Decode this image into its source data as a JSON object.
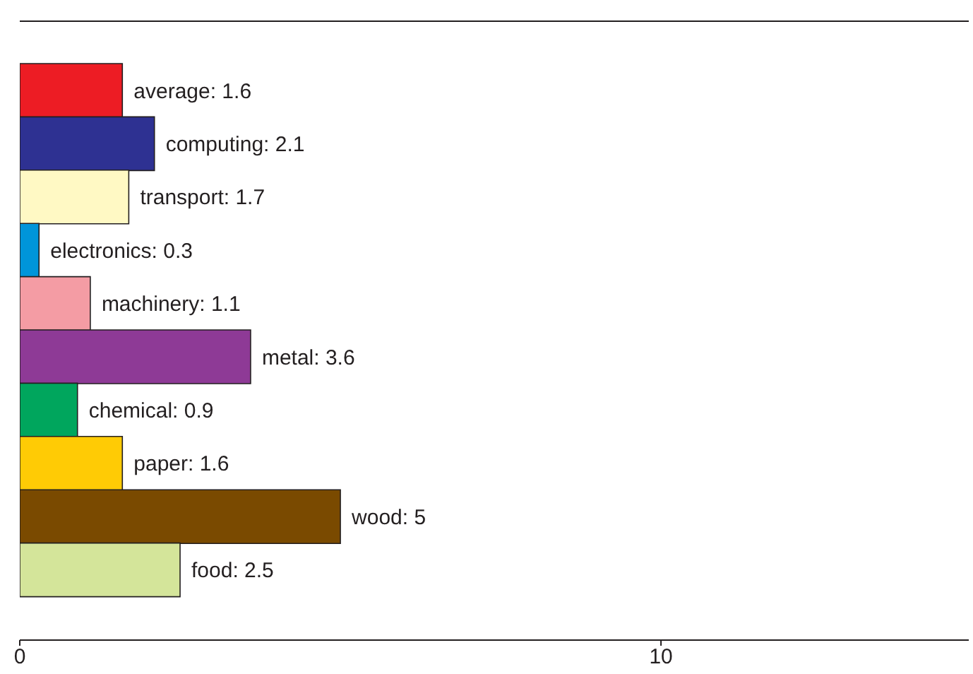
{
  "chart_data": {
    "type": "bar",
    "orientation": "horizontal",
    "categories": [
      null,
      null,
      null,
      null,
      null,
      null,
      null,
      null,
      null,
      null
    ],
    "values": [
      1.6,
      2.1,
      1.7,
      0.3,
      1.1,
      3.6,
      0.9,
      1.6,
      5,
      2.5
    ],
    "value_labels": [
      "average: 1.6",
      "computing: 2.1",
      "transport: 1.7",
      "electronics: 0.3",
      "machinery: 1.1",
      "metal: 3.6",
      "chemical: 0.9",
      "paper: 1.6",
      "wood: 5",
      "food: 2.5"
    ],
    "colors": [
      "#ed1c24",
      "#2e3192",
      "#fff9c4",
      "#0095da",
      "#f49ca4",
      "#8e3a96",
      "#00a65d",
      "#ffcb05",
      "#7a4a00",
      "#d4e59a"
    ],
    "xlim": [
      0,
      14.8
    ],
    "xticks": [
      0,
      10
    ],
    "tick_labels": "x"
  }
}
